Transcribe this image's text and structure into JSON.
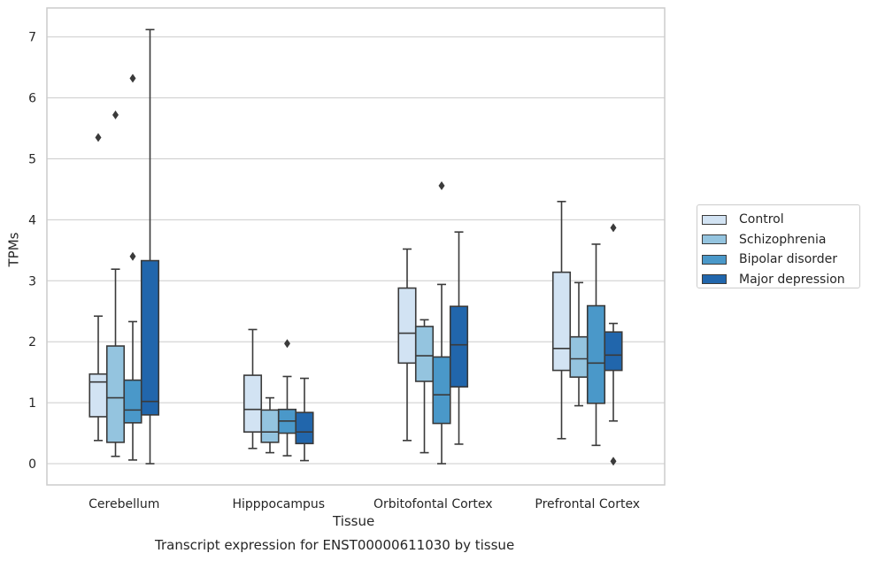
{
  "chart_data": {
    "type": "box",
    "title": "Transcript expression for ENST00000611030 by tissue",
    "xlabel": "Tissue",
    "ylabel": "TPMs",
    "categories": [
      "Cerebellum",
      "Hipppocampus",
      "Orbitofontal Cortex",
      "Prefrontal Cortex"
    ],
    "ylim": [
      -0.35,
      7.5
    ],
    "yticks": [
      0,
      1,
      2,
      3,
      4,
      5,
      6,
      7
    ],
    "grid": true,
    "legend_position": "right",
    "colors": {
      "Control": "#d2e3f3",
      "Schizophrenia": "#94c4df",
      "Bipolar disorder": "#4a98c9",
      "Major depression": "#2166ac"
    },
    "series": [
      {
        "name": "Control",
        "boxes": [
          {
            "min": 0.38,
            "q1": 0.77,
            "median": 1.34,
            "q3": 1.47,
            "max": 2.42,
            "outliers": [
              5.35
            ]
          },
          {
            "min": 0.25,
            "q1": 0.52,
            "median": 0.89,
            "q3": 1.45,
            "max": 2.2,
            "outliers": []
          },
          {
            "min": 0.38,
            "q1": 1.65,
            "median": 2.14,
            "q3": 2.88,
            "max": 3.52,
            "outliers": []
          },
          {
            "min": 0.41,
            "q1": 1.53,
            "median": 1.89,
            "q3": 3.14,
            "max": 4.3,
            "outliers": []
          }
        ]
      },
      {
        "name": "Schizophrenia",
        "boxes": [
          {
            "min": 0.12,
            "q1": 0.35,
            "median": 1.08,
            "q3": 1.93,
            "max": 3.19,
            "outliers": [
              5.72
            ]
          },
          {
            "min": 0.18,
            "q1": 0.35,
            "median": 0.52,
            "q3": 0.88,
            "max": 1.08,
            "outliers": []
          },
          {
            "min": 0.18,
            "q1": 1.35,
            "median": 1.77,
            "q3": 2.25,
            "max": 2.36,
            "outliers": []
          },
          {
            "min": 0.95,
            "q1": 1.42,
            "median": 1.72,
            "q3": 2.08,
            "max": 2.97,
            "outliers": []
          }
        ]
      },
      {
        "name": "Bipolar disorder",
        "boxes": [
          {
            "min": 0.06,
            "q1": 0.67,
            "median": 0.88,
            "q3": 1.37,
            "max": 2.33,
            "outliers": [
              3.4,
              6.32
            ]
          },
          {
            "min": 0.13,
            "q1": 0.5,
            "median": 0.7,
            "q3": 0.89,
            "max": 1.43,
            "outliers": [
              1.97
            ]
          },
          {
            "min": 0.0,
            "q1": 0.66,
            "median": 1.13,
            "q3": 1.75,
            "max": 2.94,
            "outliers": [
              4.56
            ]
          },
          {
            "min": 0.3,
            "q1": 0.99,
            "median": 1.65,
            "q3": 2.59,
            "max": 3.6,
            "outliers": []
          }
        ]
      },
      {
        "name": "Major depression",
        "boxes": [
          {
            "min": 0.0,
            "q1": 0.8,
            "median": 1.02,
            "q3": 3.33,
            "max": 7.12,
            "outliers": []
          },
          {
            "min": 0.05,
            "q1": 0.33,
            "median": 0.52,
            "q3": 0.84,
            "max": 1.4,
            "outliers": []
          },
          {
            "min": 0.32,
            "q1": 1.26,
            "median": 1.95,
            "q3": 2.58,
            "max": 3.8,
            "outliers": []
          },
          {
            "min": 0.7,
            "q1": 1.53,
            "median": 1.78,
            "q3": 2.16,
            "max": 2.3,
            "outliers": [
              0.04,
              3.87
            ]
          }
        ]
      }
    ]
  }
}
